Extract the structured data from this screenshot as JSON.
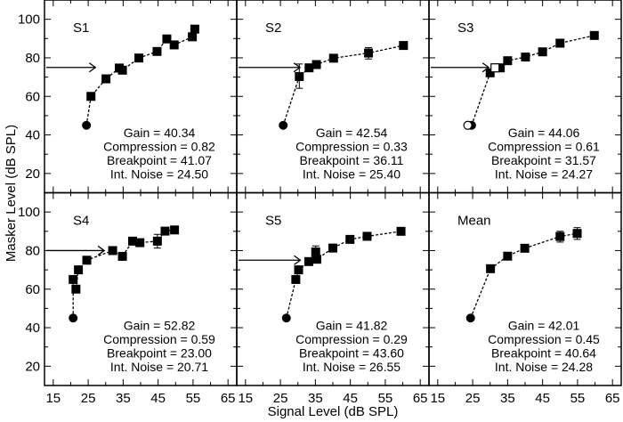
{
  "chart_data": {
    "type": "scatter",
    "layout": "2x3 panel grid, shared axes",
    "xlabel": "Signal Level (dB SPL)",
    "ylabel": "Masker Level (dB SPL)",
    "xlim": [
      12.5,
      67.5
    ],
    "ylim": [
      10,
      110
    ],
    "x_ticks": [
      15,
      25,
      35,
      45,
      55,
      65
    ],
    "y_ticks": [
      20,
      40,
      60,
      80,
      100
    ],
    "grid": false,
    "colors": {
      "marker": "#000000",
      "line": "#000000"
    },
    "panels": [
      {
        "title": "S1",
        "circle": {
          "x": 24.5,
          "y": 45
        },
        "squares": [
          [
            25.8,
            60
          ],
          [
            30.1,
            69.1
          ],
          [
            33.9,
            74.7
          ],
          [
            34.8,
            73.6
          ],
          [
            39.5,
            79.9
          ],
          [
            44.7,
            83.3
          ],
          [
            47.5,
            89.8
          ],
          [
            49.6,
            86.7
          ],
          [
            54.8,
            90.9
          ],
          [
            55.5,
            94.9
          ]
        ],
        "error_bars": [],
        "arrow": {
          "x": 27.1,
          "y": 75
        },
        "stats": [
          "Gain = 40.34",
          "Compression = 0.82",
          "Breakpoint = 41.07",
          "Int. Noise = 24.50"
        ]
      },
      {
        "title": "S2",
        "circle": {
          "x": 25.8,
          "y": 45
        },
        "squares": [
          [
            30.4,
            70.3
          ],
          [
            33.2,
            74.8
          ],
          [
            35.3,
            76.5
          ],
          [
            40.2,
            79.8
          ],
          [
            50.2,
            82.5
          ],
          [
            60.2,
            86.4
          ]
        ],
        "error_bars": [
          {
            "x": 30.4,
            "low": 64.2,
            "high": 76.8
          },
          {
            "x": 50.2,
            "low": 79.4,
            "high": 85.3
          }
        ],
        "arrow": {
          "x": 30.6,
          "y": 75
        },
        "stats": [
          "Gain = 42.54",
          "Compression = 0.33",
          "Breakpoint = 36.11",
          "Int. Noise = 25.40"
        ]
      },
      {
        "title": "S3",
        "circle": {
          "x": 24.7,
          "y": 45
        },
        "open_circle": {
          "x": 23.6,
          "y": 45
        },
        "open_squares": [
          [
            31.4,
            74.8
          ]
        ],
        "squares": [
          [
            30,
            72.2
          ],
          [
            32.9,
            74.8
          ],
          [
            35,
            78.5
          ],
          [
            40.1,
            80.4
          ],
          [
            45,
            83.1
          ],
          [
            50,
            87.6
          ],
          [
            59.8,
            91.6
          ]
        ],
        "error_bars": [],
        "arrow": {
          "x": 29.6,
          "y": 75
        },
        "stats": [
          "Gain = 44.06",
          "Compression = 0.61",
          "Breakpoint = 31.57",
          "Int. Noise = 24.27"
        ]
      },
      {
        "title": "S4",
        "circle": {
          "x": 20.7,
          "y": 45
        },
        "squares": [
          [
            20.7,
            65
          ],
          [
            21.5,
            60
          ],
          [
            22.2,
            70
          ],
          [
            24.6,
            75
          ],
          [
            32,
            80
          ],
          [
            34.8,
            77
          ],
          [
            37.7,
            84.9
          ],
          [
            39.8,
            84.1
          ],
          [
            44.8,
            84.9
          ],
          [
            47,
            90.1
          ],
          [
            49.7,
            90.7
          ]
        ],
        "error_bars": [
          {
            "x": 44.8,
            "low": 81.3,
            "high": 88.4
          }
        ],
        "arrow": {
          "x": 29.6,
          "y": 80
        },
        "stats": [
          "Gain = 52.82",
          "Compression = 0.59",
          "Breakpoint = 23.00",
          "Int. Noise = 20.71"
        ]
      },
      {
        "title": "S5",
        "circle": {
          "x": 26.7,
          "y": 45
        },
        "squares": [
          [
            29.4,
            65
          ],
          [
            30.2,
            70
          ],
          [
            33.1,
            74.3
          ],
          [
            35.1,
            79.3
          ],
          [
            35.4,
            75.5
          ],
          [
            40,
            81.3
          ],
          [
            44.9,
            85.8
          ],
          [
            49.8,
            87.4
          ],
          [
            59.5,
            90
          ]
        ],
        "error_bars": [
          {
            "x": 35.1,
            "low": 76.2,
            "high": 82.4
          }
        ],
        "arrow": {
          "x": 30.7,
          "y": 75
        },
        "stats": [
          "Gain = 41.82",
          "Compression = 0.29",
          "Breakpoint = 43.60",
          "Int. Noise = 26.55"
        ]
      },
      {
        "title": "Mean",
        "circle": {
          "x": 24.4,
          "y": 45
        },
        "squares": [
          [
            30.1,
            70.6
          ],
          [
            35,
            77.1
          ],
          [
            39.9,
            81.2
          ],
          [
            50,
            87.3
          ],
          [
            54.9,
            88.9
          ]
        ],
        "error_bars": [
          {
            "x": 50,
            "low": 84.4,
            "high": 90
          },
          {
            "x": 54.9,
            "low": 85.8,
            "high": 91.9
          }
        ],
        "arrow": null,
        "stats": [
          "Gain = 42.01",
          "Compression = 0.45",
          "Breakpoint = 40.64",
          "Int. Noise = 24.28"
        ]
      }
    ]
  }
}
